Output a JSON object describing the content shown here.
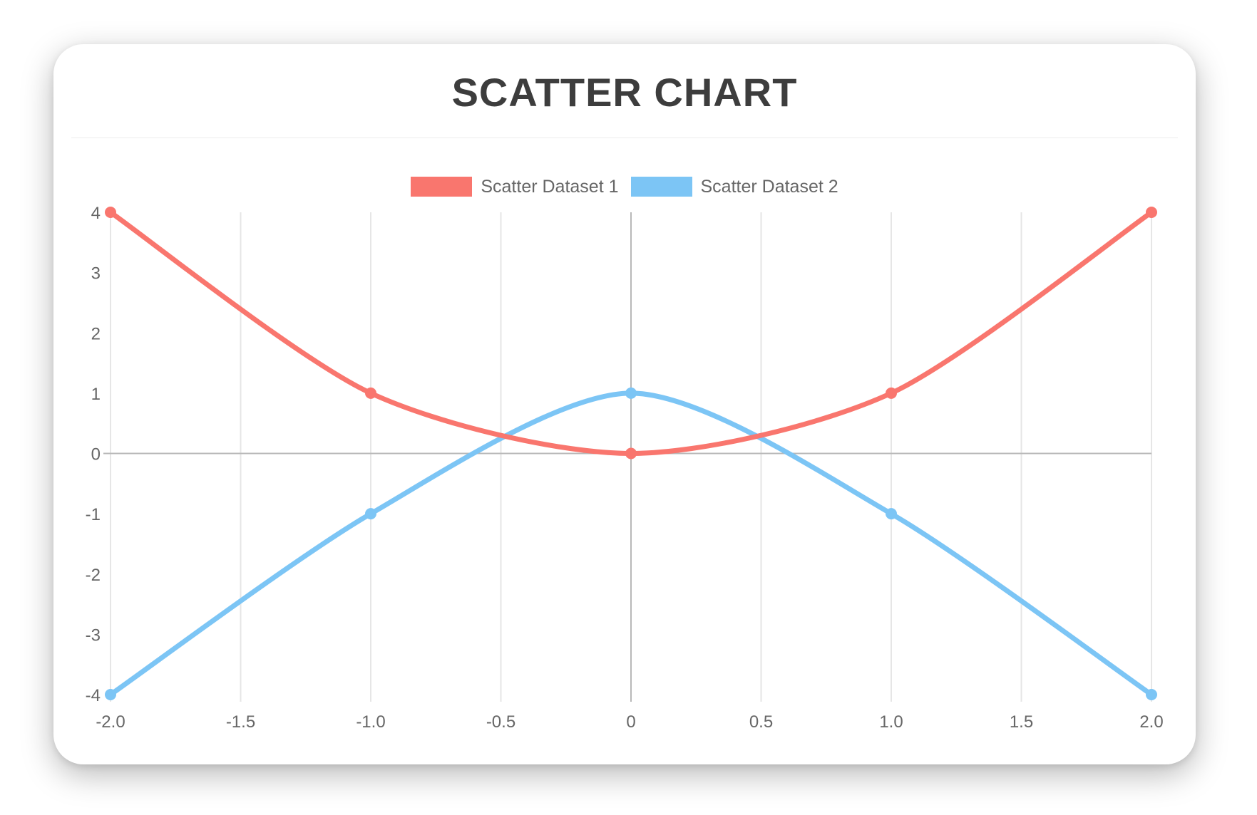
{
  "chart_data": {
    "type": "scatter",
    "title": "SCATTER CHART",
    "series": [
      {
        "name": "Scatter Dataset 1",
        "color": "#F9766E",
        "points": [
          [
            -2,
            4
          ],
          [
            -1,
            1
          ],
          [
            0,
            0
          ],
          [
            1,
            1
          ],
          [
            2,
            4
          ]
        ]
      },
      {
        "name": "Scatter Dataset 2",
        "color": "#7CC5F5",
        "points": [
          [
            -2,
            -4
          ],
          [
            -1,
            -1
          ],
          [
            0,
            1
          ],
          [
            1,
            -1
          ],
          [
            2,
            -4
          ]
        ]
      }
    ],
    "xlim": [
      -2,
      2
    ],
    "ylim": [
      -4,
      4
    ],
    "x_ticks": {
      "values": [
        -2,
        -1.5,
        -1,
        -0.5,
        0,
        0.5,
        1,
        1.5,
        2
      ],
      "labels": [
        "-2.0",
        "-1.5",
        "-1.0",
        "-0.5",
        "0",
        "0.5",
        "1.0",
        "1.5",
        "2.0"
      ]
    },
    "y_ticks": {
      "values": [
        4,
        3,
        2,
        1,
        0,
        -1,
        -2,
        -3,
        -4
      ],
      "labels": [
        "4",
        "3",
        "2",
        "1",
        "0",
        "-1",
        "-2",
        "-3",
        "-4"
      ]
    },
    "grid": true,
    "legend_position": "top",
    "line_tension": 0.4,
    "line_width": 7,
    "point_radius": 8,
    "colors": {
      "grid_line": "#E6E6E6",
      "zero_line": "#B8B8B8",
      "tick_label": "#666666",
      "legend_label": "#666666",
      "title": "#3D3D3D",
      "divider": "#EDEDED",
      "card_background": "#FFFFFF",
      "page_background": "#FFFFFF"
    }
  }
}
